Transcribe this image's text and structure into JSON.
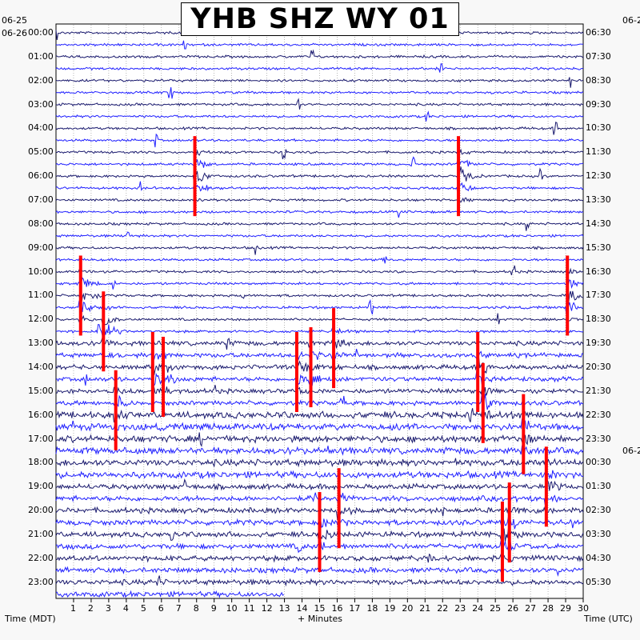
{
  "title": "YHB SHZ WY 01",
  "left_date_top": "06-25",
  "left_date_main": "06-26",
  "right_date_top": "06-2",
  "right_date_mid": "06-2",
  "x_axis_label": "+ Minutes",
  "left_axis_label": "Time (MDT)",
  "right_axis_label": "Time (UTC)",
  "colors": {
    "dark": "#1a1a6e",
    "blue": "#2020ff",
    "event": "#ff0000",
    "background": "#ffffff",
    "grid": "#888888"
  },
  "chart_data": {
    "type": "line",
    "xlim": [
      0,
      30
    ],
    "x_ticks": [
      "1",
      "2",
      "3",
      "4",
      "5",
      "6",
      "7",
      "8",
      "9",
      "10",
      "11",
      "12",
      "13",
      "14",
      "15",
      "16",
      "17",
      "18",
      "19",
      "20",
      "21",
      "22",
      "23",
      "24",
      "25",
      "26",
      "27",
      "28",
      "29",
      "30"
    ],
    "left_hour_labels": [
      "00:00",
      "01:00",
      "02:00",
      "03:00",
      "04:00",
      "05:00",
      "06:00",
      "07:00",
      "08:00",
      "09:00",
      "10:00",
      "11:00",
      "12:00",
      "13:00",
      "14:00",
      "15:00",
      "16:00",
      "17:00",
      "18:00",
      "19:00",
      "20:00",
      "21:00",
      "22:00",
      "23:00"
    ],
    "right_hour_labels": [
      "06:30",
      "07:30",
      "08:30",
      "09:30",
      "10:30",
      "11:30",
      "12:30",
      "13:30",
      "14:30",
      "15:30",
      "16:30",
      "17:30",
      "18:30",
      "19:30",
      "20:30",
      "21:30",
      "22:30",
      "23:30",
      "00:30",
      "01:30",
      "02:30",
      "03:30",
      "04:30",
      "05:30"
    ],
    "series_colors": [
      "dark",
      "blue"
    ],
    "events": [
      {
        "minute": 1.4,
        "hour": 11.0
      },
      {
        "minute": 2.7,
        "hour": 12.5
      },
      {
        "minute": 3.4,
        "hour": 15.8
      },
      {
        "minute": 5.5,
        "hour": 14.2
      },
      {
        "minute": 6.1,
        "hour": 14.4
      },
      {
        "minute": 7.9,
        "hour": 6.0
      },
      {
        "minute": 13.7,
        "hour": 14.2
      },
      {
        "minute": 14.5,
        "hour": 14.0
      },
      {
        "minute": 15.0,
        "hour": 20.9
      },
      {
        "minute": 15.8,
        "hour": 13.2
      },
      {
        "minute": 16.1,
        "hour": 19.9
      },
      {
        "minute": 22.9,
        "hour": 6.0
      },
      {
        "minute": 24.0,
        "hour": 14.2
      },
      {
        "minute": 24.3,
        "hour": 15.5
      },
      {
        "minute": 25.4,
        "hour": 21.3
      },
      {
        "minute": 25.8,
        "hour": 20.5
      },
      {
        "minute": 26.6,
        "hour": 16.8
      },
      {
        "minute": 27.9,
        "hour": 19.0
      },
      {
        "minute": 29.1,
        "hour": 11.0
      }
    ]
  }
}
